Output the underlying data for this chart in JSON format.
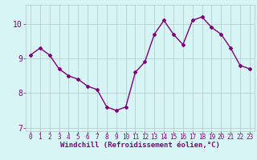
{
  "x": [
    0,
    1,
    2,
    3,
    4,
    5,
    6,
    7,
    8,
    9,
    10,
    11,
    12,
    13,
    14,
    15,
    16,
    17,
    18,
    19,
    20,
    21,
    22,
    23
  ],
  "y": [
    9.1,
    9.3,
    9.1,
    8.7,
    8.5,
    8.4,
    8.2,
    8.1,
    7.6,
    7.5,
    7.6,
    8.6,
    8.9,
    9.7,
    10.1,
    9.7,
    9.4,
    10.1,
    10.2,
    9.9,
    9.7,
    9.3,
    8.8,
    8.7
  ],
  "line_color": "#800080",
  "marker": "D",
  "marker_size": 2,
  "bg_color": "#d8f5f5",
  "grid_color": "#b0c8c8",
  "xlabel": "Windchill (Refroidissement éolien,°C)",
  "xlabel_color": "#800080",
  "tick_color": "#800080",
  "ylim": [
    6.9,
    10.55
  ],
  "yticks": [
    7,
    8,
    9,
    10
  ],
  "xticks": [
    0,
    1,
    2,
    3,
    4,
    5,
    6,
    7,
    8,
    9,
    10,
    11,
    12,
    13,
    14,
    15,
    16,
    17,
    18,
    19,
    20,
    21,
    22,
    23
  ],
  "tick_fontsize": 5.5,
  "xlabel_fontsize": 6.5,
  "ytick_fontsize": 7.0,
  "linewidth": 1.0
}
